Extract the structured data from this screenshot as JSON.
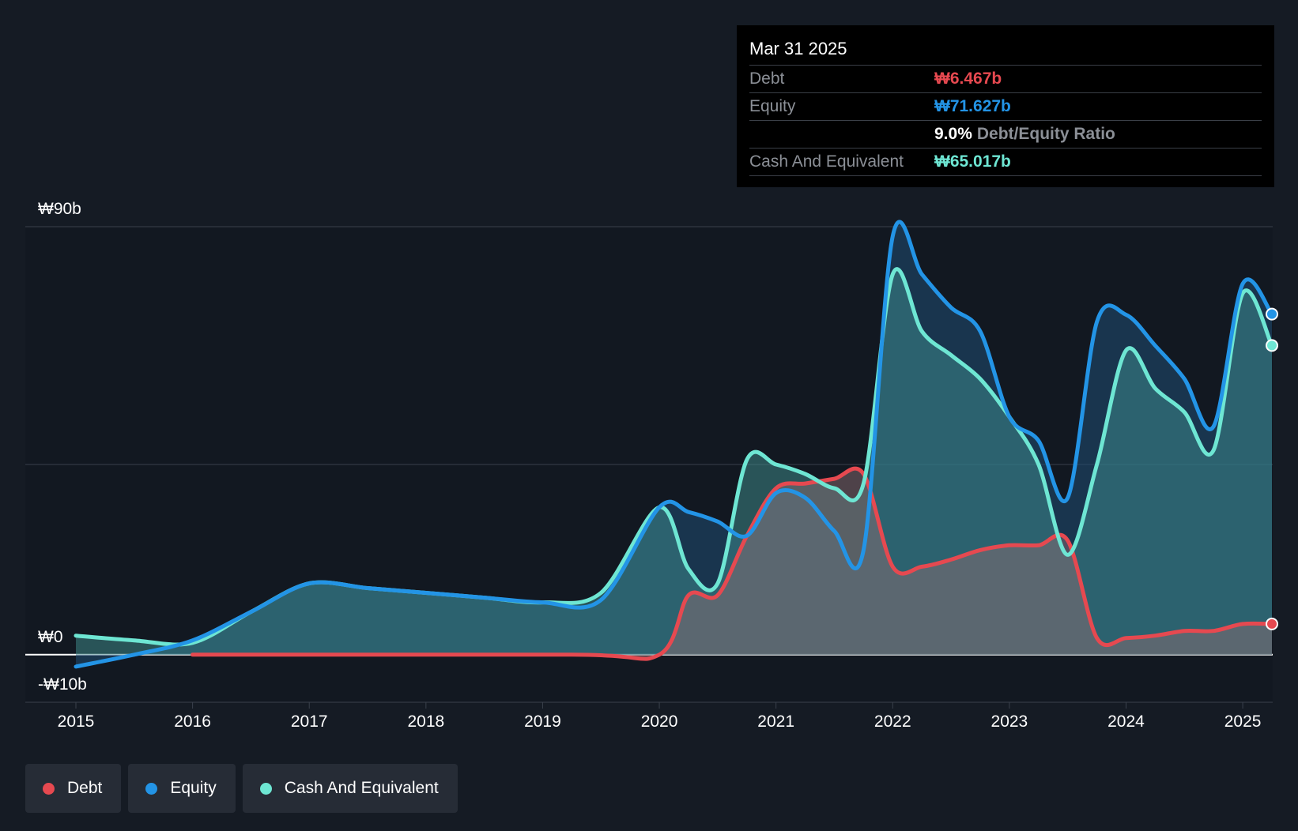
{
  "tooltip": {
    "date": "Mar 31 2025",
    "rows": [
      {
        "label": "Debt",
        "value": "₩6.467b"
      },
      {
        "label": "Equity",
        "value": "₩71.627b"
      },
      {
        "label": "",
        "ratio_value": "9.0%",
        "ratio_label": "Debt/Equity Ratio"
      },
      {
        "label": "Cash And Equivalent",
        "value": "₩65.017b"
      }
    ]
  },
  "legend": [
    {
      "label": "Debt",
      "color": "#e64950"
    },
    {
      "label": "Equity",
      "color": "#2394e6"
    },
    {
      "label": "Cash And Equivalent",
      "color": "#6ee6d3"
    }
  ],
  "chart_data": {
    "type": "area",
    "ylim": [
      -10,
      90
    ],
    "y_tick_labels": [
      {
        "value": 90,
        "label": "₩90b"
      },
      {
        "value": 0,
        "label": "₩0"
      },
      {
        "value": -10,
        "label": "-₩10b"
      }
    ],
    "x_tick_labels": [
      "2015",
      "2016",
      "2017",
      "2018",
      "2019",
      "2020",
      "2021",
      "2022",
      "2023",
      "2024",
      "2025"
    ],
    "grid": true,
    "legend_position": "bottom-left",
    "series": [
      {
        "name": "Debt",
        "color": "#e64950",
        "points": [
          [
            2016,
            0
          ],
          [
            2019.25,
            0
          ],
          [
            2020,
            0
          ],
          [
            2020.25,
            12.5
          ],
          [
            2020.5,
            12.5
          ],
          [
            2020.75,
            25
          ],
          [
            2021,
            35
          ],
          [
            2021.25,
            36
          ],
          [
            2021.5,
            37
          ],
          [
            2021.75,
            38
          ],
          [
            2022,
            18.5
          ],
          [
            2022.25,
            18.5
          ],
          [
            2022.5,
            20
          ],
          [
            2022.75,
            22
          ],
          [
            2023,
            23
          ],
          [
            2023.25,
            23
          ],
          [
            2023.5,
            24
          ],
          [
            2023.75,
            3.5
          ],
          [
            2024,
            3.5
          ],
          [
            2024.25,
            4
          ],
          [
            2024.5,
            5
          ],
          [
            2024.75,
            5
          ],
          [
            2025,
            6.467
          ],
          [
            2025.25,
            6.467
          ]
        ]
      },
      {
        "name": "Equity",
        "color": "#2394e6",
        "points": [
          [
            2015,
            -2.5
          ],
          [
            2015.5,
            0
          ],
          [
            2016,
            3
          ],
          [
            2016.5,
            9
          ],
          [
            2017,
            15
          ],
          [
            2017.5,
            14
          ],
          [
            2018,
            13
          ],
          [
            2018.5,
            12
          ],
          [
            2019,
            11
          ],
          [
            2019.5,
            11.5
          ],
          [
            2020,
            31
          ],
          [
            2020.25,
            30
          ],
          [
            2020.5,
            28
          ],
          [
            2020.75,
            25
          ],
          [
            2021,
            34
          ],
          [
            2021.25,
            33
          ],
          [
            2021.5,
            26
          ],
          [
            2021.75,
            22
          ],
          [
            2022,
            88
          ],
          [
            2022.25,
            80
          ],
          [
            2022.5,
            73
          ],
          [
            2022.75,
            68
          ],
          [
            2023,
            50
          ],
          [
            2023.25,
            45
          ],
          [
            2023.5,
            33
          ],
          [
            2023.75,
            70
          ],
          [
            2024,
            71.5
          ],
          [
            2024.25,
            65
          ],
          [
            2024.5,
            58
          ],
          [
            2024.75,
            48
          ],
          [
            2025,
            78
          ],
          [
            2025.25,
            71.627
          ]
        ]
      },
      {
        "name": "Cash And Equivalent",
        "color": "#6ee6d3",
        "points": [
          [
            2015,
            4
          ],
          [
            2015.5,
            3
          ],
          [
            2016,
            2.5
          ],
          [
            2016.5,
            9
          ],
          [
            2017,
            15
          ],
          [
            2017.5,
            14
          ],
          [
            2018,
            13
          ],
          [
            2018.5,
            12
          ],
          [
            2019,
            11
          ],
          [
            2019.5,
            13
          ],
          [
            2020,
            31
          ],
          [
            2020.25,
            18
          ],
          [
            2020.5,
            15
          ],
          [
            2020.75,
            41
          ],
          [
            2021,
            40
          ],
          [
            2021.25,
            38
          ],
          [
            2021.5,
            35
          ],
          [
            2021.75,
            36
          ],
          [
            2022,
            80
          ],
          [
            2022.25,
            68
          ],
          [
            2022.5,
            63
          ],
          [
            2022.75,
            58
          ],
          [
            2023,
            50
          ],
          [
            2023.25,
            40
          ],
          [
            2023.5,
            21
          ],
          [
            2023.75,
            40
          ],
          [
            2024,
            64
          ],
          [
            2024.25,
            56
          ],
          [
            2024.5,
            51
          ],
          [
            2024.75,
            43
          ],
          [
            2025,
            76
          ],
          [
            2025.25,
            65.017
          ]
        ]
      }
    ]
  }
}
